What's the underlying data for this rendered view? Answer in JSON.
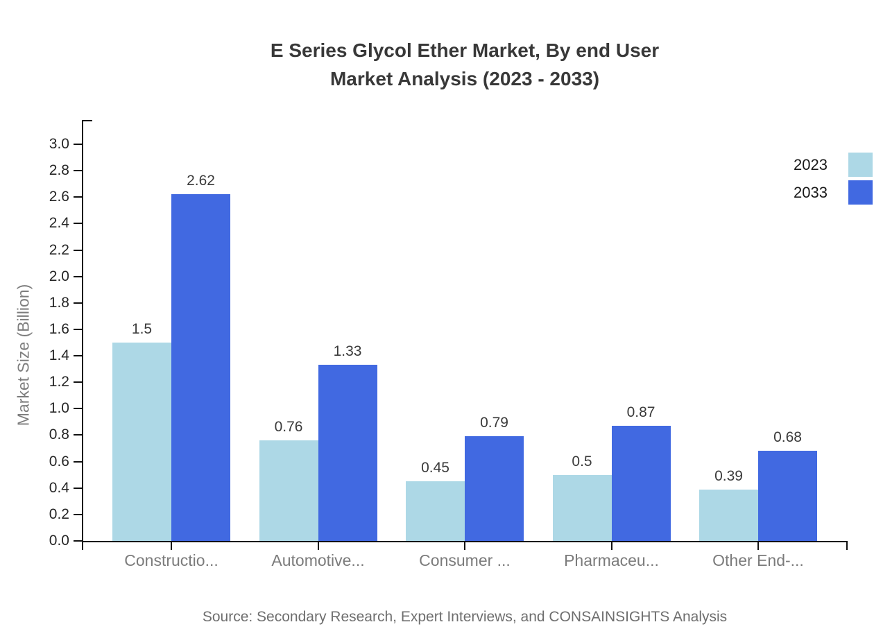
{
  "title": {
    "line1": "E Series Glycol Ether Market, By end User",
    "line2": "Market Analysis (2023 - 2033)"
  },
  "source": "Source: Secondary Research, Expert Interviews, and CONSAINSIGHTS Analysis",
  "chart_data": {
    "type": "bar",
    "title": "E Series Glycol Ether Market, By end User Market Analysis (2023 - 2033)",
    "categories": [
      "Constructio...",
      "Automotive...",
      "Consumer ...",
      "Pharmaceu...",
      "Other End-..."
    ],
    "series": [
      {
        "name": "2023",
        "color": "#ADD8E6",
        "values": [
          1.5,
          0.76,
          0.45,
          0.5,
          0.39
        ]
      },
      {
        "name": "2033",
        "color": "#4169E1",
        "values": [
          2.62,
          1.33,
          0.79,
          0.87,
          0.68
        ]
      }
    ],
    "xlabel": "",
    "ylabel": "Market Size (Billion)",
    "ylim": [
      0,
      3.0
    ],
    "ytick_step": 0.2,
    "grid": false,
    "legend_position": "top-right",
    "colors": {
      "series_2023": "#ADD8E6",
      "series_2033": "#4169E1",
      "axis": "#111111",
      "label_text": "#3a3a3a",
      "category_text": "#7b7b7b"
    }
  }
}
